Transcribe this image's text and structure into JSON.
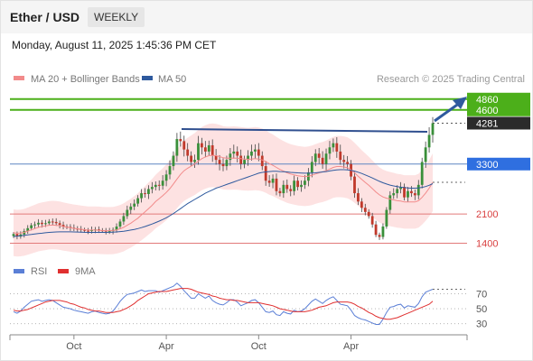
{
  "header": {
    "title": "Ether / USD",
    "timeframe": "WEEKLY",
    "date": "Monday, August 11, 2025 1:45:36 PM CET"
  },
  "legend": {
    "items": [
      {
        "label": "MA 20 + Bollinger Bands",
        "color": "#f28b8b"
      },
      {
        "label": "MA 50",
        "color": "#2f5a9e"
      }
    ],
    "source": "Research © 2025 Trading Central"
  },
  "rsi_legend": {
    "items": [
      {
        "label": "RSI",
        "color": "#5b7fd6"
      },
      {
        "label": "9MA",
        "color": "#e03030"
      }
    ]
  },
  "chart_data": [
    {
      "type": "candlestick",
      "ylim": [
        1150,
        5050
      ],
      "x_tick_labels": [
        "Oct",
        "Apr",
        "Oct",
        "Apr"
      ],
      "level_labels": [
        {
          "text": "4860",
          "value": 4860,
          "color": "#4caf1a"
        },
        {
          "text": "4600",
          "value": 4600,
          "color": "#4caf1a"
        },
        {
          "text": "4281",
          "value": 4281,
          "color": "#333333"
        },
        {
          "text": "3300",
          "value": 3300,
          "color": "#2f6fe0"
        },
        {
          "text": "2100",
          "value": 2100,
          "color": "#d94040"
        },
        {
          "text": "1400",
          "value": 1400,
          "color": "#d94040"
        }
      ],
      "weekly_closes": [
        1620,
        1560,
        1610,
        1690,
        1760,
        1830,
        1850,
        1890,
        1860,
        1880,
        1920,
        1910,
        1880,
        1840,
        1800,
        1790,
        1770,
        1750,
        1740,
        1720,
        1700,
        1690,
        1720,
        1730,
        1710,
        1700,
        1680,
        1690,
        1720,
        1800,
        1920,
        2050,
        2200,
        2280,
        2350,
        2480,
        2600,
        2580,
        2700,
        2750,
        2800,
        2780,
        2900,
        3050,
        3250,
        3500,
        3900,
        3850,
        3650,
        3500,
        3350,
        3400,
        3800,
        3700,
        3600,
        3750,
        3500,
        3400,
        3300,
        3250,
        3400,
        3550,
        3600,
        3500,
        3300,
        3400,
        3500,
        3600,
        3650,
        3500,
        3250,
        2900,
        2850,
        2950,
        2650,
        2600,
        2800,
        2700,
        2650,
        2900,
        2750,
        2800,
        2900,
        3100,
        3350,
        3550,
        3450,
        3300,
        3550,
        3700,
        3800,
        3600,
        3400,
        3350,
        3300,
        3000,
        2600,
        2400,
        2250,
        2150,
        2050,
        1850,
        1600,
        1550,
        1800,
        2200,
        2550,
        2600,
        2700,
        2750,
        2500,
        2650,
        2600,
        2550,
        2800,
        3350,
        3700,
        4000,
        4281
      ],
      "ma20": [
        1650,
        1640,
        1645,
        1660,
        1690,
        1720,
        1750,
        1780,
        1800,
        1815,
        1830,
        1835,
        1830,
        1820,
        1800,
        1785,
        1770,
        1755,
        1745,
        1735,
        1725,
        1715,
        1715,
        1715,
        1710,
        1705,
        1700,
        1700,
        1705,
        1720,
        1745,
        1780,
        1830,
        1880,
        1940,
        2000,
        2080,
        2150,
        2230,
        2310,
        2400,
        2470,
        2540,
        2620,
        2710,
        2820,
        2940,
        3050,
        3140,
        3200,
        3250,
        3300,
        3370,
        3430,
        3470,
        3500,
        3510,
        3500,
        3480,
        3450,
        3440,
        3440,
        3445,
        3440,
        3430,
        3420,
        3415,
        3420,
        3430,
        3420,
        3400,
        3360,
        3310,
        3270,
        3220,
        3170,
        3130,
        3090,
        3060,
        3040,
        3020,
        3010,
        3000,
        3010,
        3030,
        3060,
        3090,
        3110,
        3140,
        3180,
        3220,
        3240,
        3240,
        3230,
        3210,
        3160,
        3090,
        3010,
        2930,
        2860,
        2790,
        2710,
        2630,
        2560,
        2510,
        2480,
        2460,
        2440,
        2420,
        2410,
        2390,
        2390,
        2390,
        2390,
        2420,
        2500,
        2600,
        2720,
        2860
      ],
      "ma50": [
        1560,
        1570,
        1580,
        1590,
        1600,
        1610,
        1620,
        1630,
        1640,
        1650,
        1660,
        1665,
        1670,
        1672,
        1673,
        1673,
        1672,
        1670,
        1668,
        1665,
        1662,
        1660,
        1660,
        1660,
        1660,
        1660,
        1660,
        1662,
        1665,
        1670,
        1678,
        1688,
        1700,
        1715,
        1730,
        1750,
        1775,
        1800,
        1830,
        1860,
        1895,
        1930,
        1970,
        2010,
        2060,
        2110,
        2170,
        2230,
        2290,
        2350,
        2400,
        2450,
        2500,
        2550,
        2600,
        2640,
        2680,
        2720,
        2750,
        2780,
        2810,
        2840,
        2870,
        2900,
        2930,
        2960,
        2990,
        3020,
        3050,
        3080,
        3100,
        3110,
        3120,
        3125,
        3125,
        3120,
        3115,
        3110,
        3100,
        3095,
        3090,
        3085,
        3080,
        3080,
        3085,
        3090,
        3100,
        3110,
        3120,
        3135,
        3150,
        3160,
        3165,
        3165,
        3160,
        3150,
        3130,
        3105,
        3075,
        3040,
        3005,
        2965,
        2925,
        2885,
        2850,
        2820,
        2795,
        2775,
        2760,
        2745,
        2735,
        2725,
        2720,
        2720,
        2725,
        2740,
        2760,
        2790,
        2830
      ],
      "rsi": [
        46,
        44,
        47,
        52,
        56,
        60,
        61,
        62,
        60,
        61,
        62,
        61,
        58,
        55,
        52,
        51,
        50,
        48,
        47,
        46,
        45,
        44,
        46,
        47,
        45,
        44,
        43,
        44,
        47,
        53,
        60,
        65,
        69,
        70,
        71,
        73,
        75,
        73,
        74,
        74,
        74,
        72,
        74,
        76,
        78,
        80,
        84,
        80,
        74,
        69,
        64,
        64,
        70,
        67,
        64,
        67,
        61,
        58,
        56,
        55,
        58,
        62,
        62,
        59,
        54,
        56,
        58,
        61,
        62,
        58,
        52,
        46,
        45,
        47,
        42,
        41,
        46,
        44,
        43,
        48,
        46,
        47,
        50,
        55,
        60,
        63,
        60,
        57,
        61,
        64,
        66,
        61,
        56,
        55,
        54,
        48,
        41,
        38,
        36,
        35,
        33,
        31,
        29,
        29,
        36,
        45,
        52,
        53,
        55,
        56,
        51,
        54,
        53,
        52,
        57,
        66,
        72,
        74,
        76
      ],
      "rsi_ma": [
        48,
        47,
        47,
        48,
        49,
        51,
        53,
        55,
        57,
        59,
        60,
        61,
        61,
        61,
        60,
        59,
        57,
        56,
        54,
        52,
        51,
        49,
        48,
        47,
        47,
        46,
        45,
        45,
        45,
        46,
        47,
        49,
        51,
        54,
        57,
        61,
        64,
        67,
        70,
        71,
        72,
        73,
        73,
        73,
        74,
        75,
        76,
        77,
        77,
        77,
        76,
        74,
        72,
        71,
        70,
        69,
        67,
        66,
        64,
        63,
        62,
        62,
        61,
        61,
        60,
        59,
        58,
        58,
        58,
        58,
        57,
        56,
        55,
        54,
        52,
        50,
        49,
        48,
        47,
        46,
        46,
        46,
        46,
        47,
        48,
        50,
        52,
        53,
        54,
        56,
        58,
        59,
        59,
        59,
        59,
        58,
        56,
        53,
        51,
        48,
        45,
        43,
        40,
        38,
        37,
        36,
        36,
        37,
        38,
        40,
        42,
        44,
        46,
        48,
        50,
        52,
        54,
        56,
        60
      ],
      "rsi_tick_labels": [
        "70",
        "50",
        "30"
      ],
      "rsi_ylim": [
        20,
        85
      ]
    }
  ]
}
